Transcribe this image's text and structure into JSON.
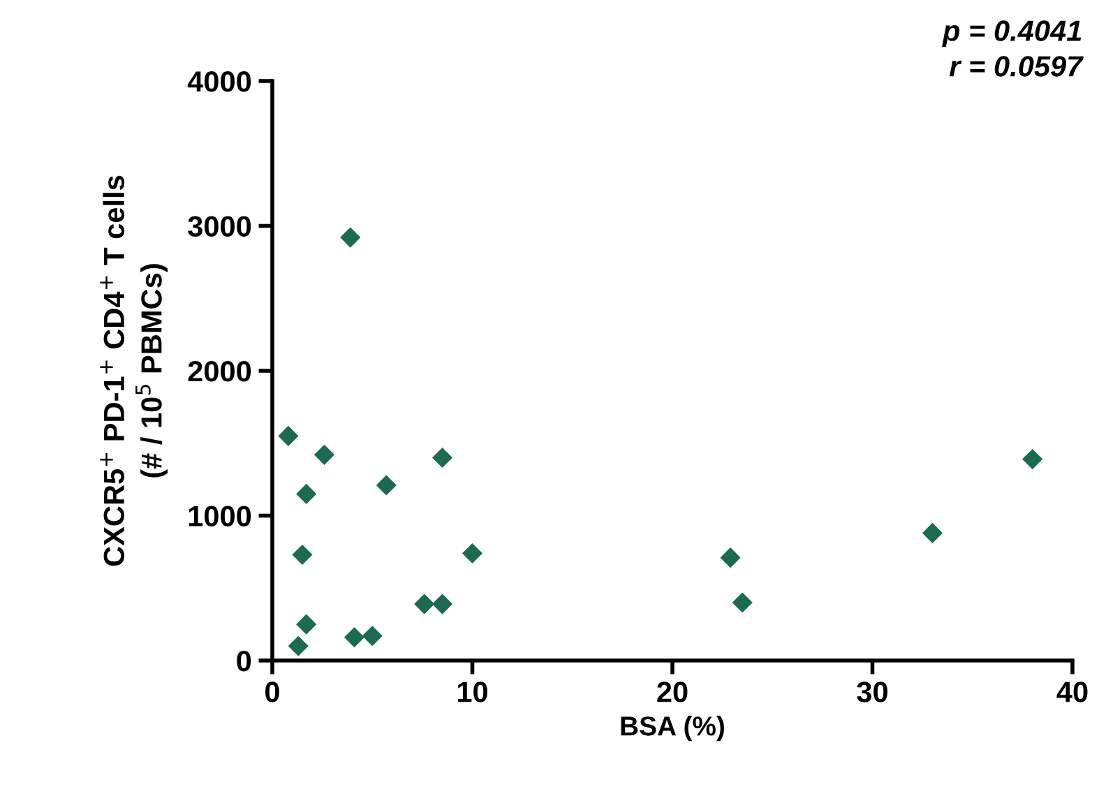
{
  "chart_data": {
    "type": "scatter",
    "xlabel": "BSA (%)",
    "ylabel": "CXCR5$^{+}$ PD-1$^{+}$ CD4$^{+}$ T cells\n(# / 10$^{5}$ PBMCs)",
    "x": [
      0.8,
      2.6,
      1.7,
      5.7,
      8.5,
      1.5,
      10.0,
      7.6,
      8.5,
      1.7,
      4.1,
      5.0,
      1.3,
      3.9,
      22.9,
      23.5,
      33.0,
      38.0
    ],
    "values": [
      1550,
      1420,
      1150,
      1210,
      1400,
      730,
      740,
      390,
      390,
      250,
      160,
      170,
      100,
      2920,
      710,
      400,
      880,
      1390
    ],
    "color": "#1a6b4f",
    "marker": "diamond",
    "xlim": [
      0,
      40
    ],
    "xticks": [
      0,
      10,
      20,
      30,
      40
    ],
    "ylim": [
      0,
      4000
    ],
    "yticks": [
      0,
      1000,
      2000,
      3000,
      4000
    ],
    "grid": false,
    "annotations": [
      "p = 0.4041",
      "r = 0.0597"
    ]
  }
}
